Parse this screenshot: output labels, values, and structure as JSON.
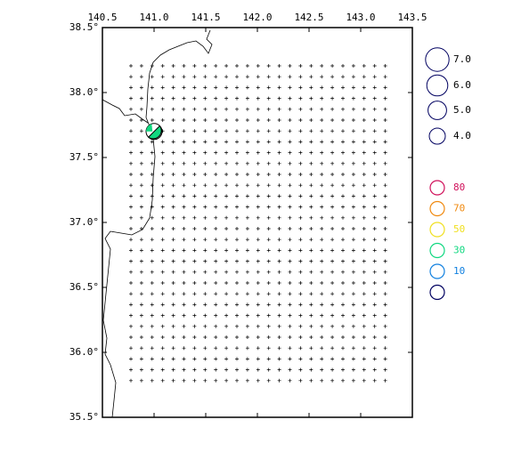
{
  "map": {
    "lonlim": [
      140.5,
      143.5
    ],
    "latlim": [
      35.5,
      38.5
    ],
    "lonticks": [
      {
        "value": 140.5,
        "label": "140.5"
      },
      {
        "value": 141.0,
        "label": "141.0"
      },
      {
        "value": 141.5,
        "label": "141.5"
      },
      {
        "value": 142.0,
        "label": "142.0"
      },
      {
        "value": 142.5,
        "label": "142.5"
      },
      {
        "value": 143.0,
        "label": "143.0"
      },
      {
        "value": 143.5,
        "label": "143.5"
      }
    ],
    "latticks": [
      {
        "value": 38.5,
        "label": "38.5°"
      },
      {
        "value": 38.0,
        "label": "38.0°"
      },
      {
        "value": 37.5,
        "label": "37.5°"
      },
      {
        "value": 37.0,
        "label": "37.0°"
      },
      {
        "value": 36.5,
        "label": "36.5°"
      },
      {
        "value": 36.0,
        "label": "36.0°"
      },
      {
        "value": 35.5,
        "label": "35.5°"
      }
    ],
    "magnitude_legend": [
      {
        "value": 7,
        "label": "7.0"
      },
      {
        "value": 6,
        "label": "6.0"
      },
      {
        "value": 5,
        "label": "5.0"
      },
      {
        "value": 4,
        "label": "4.0"
      }
    ],
    "depth_legend": [
      {
        "value": 80,
        "color": "#d0105a"
      },
      {
        "value": 70,
        "color": "#f08a10"
      },
      {
        "value": 50,
        "color": "#f0e020"
      },
      {
        "value": 30,
        "color": "#10d880"
      },
      {
        "value": 10,
        "color": "#1080e0"
      },
      {
        "color": "#000060"
      }
    ],
    "event": {
      "lon": 141.0,
      "lat": 37.7,
      "magnitude": 4,
      "depth": 30,
      "color": "#10d880"
    }
  }
}
